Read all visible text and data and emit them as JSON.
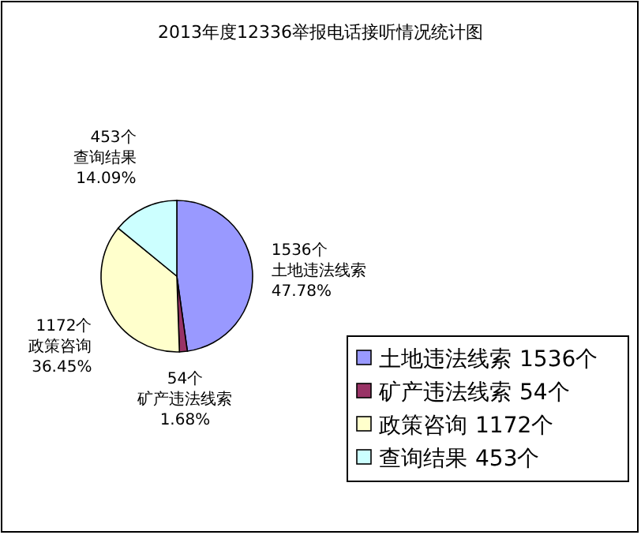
{
  "chart_data": {
    "type": "pie",
    "title": "2013年度12336举报电话接听情况统计图",
    "categories": [
      "土地违法线索",
      "矿产违法线索",
      "政策咨询",
      "查询结果"
    ],
    "values": [
      1536,
      54,
      1172,
      453
    ],
    "value_labels": [
      "1536个",
      "54个",
      "1172个",
      "453个"
    ],
    "colors": [
      "#9999ff",
      "#993366",
      "#ffffcc",
      "#ccffff"
    ],
    "annotations": [
      "47.78%",
      "1.68%",
      "36.45%",
      "14.09%"
    ],
    "legend": "bottom right"
  }
}
